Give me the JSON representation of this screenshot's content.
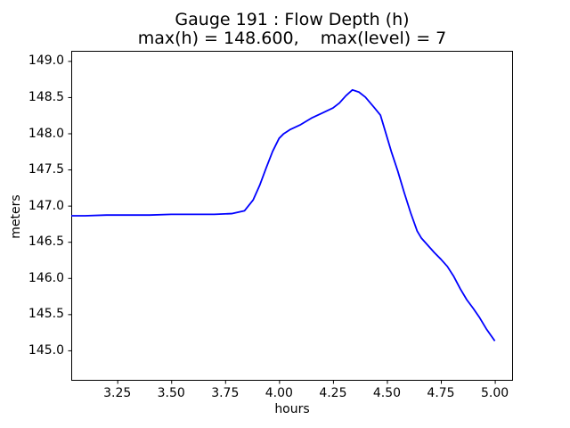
{
  "figure": {
    "background": "#ffffff",
    "text_color": "#000000"
  },
  "chart_data": {
    "type": "line",
    "title": "Gauge 191 : Flow Depth (h)",
    "subtitle": "max(h) = 148.600,    max(level) = 7",
    "xlabel": "hours",
    "ylabel": "meters",
    "xlim": [
      3.0366,
      5.0843
    ],
    "ylim": [
      144.58,
      149.14
    ],
    "xticks": [
      3.25,
      3.5,
      3.75,
      4.0,
      4.25,
      4.5,
      4.75,
      5.0
    ],
    "xtick_labels": [
      "3.25",
      "3.50",
      "3.75",
      "4.00",
      "4.25",
      "4.50",
      "4.75",
      "5.00"
    ],
    "yticks": [
      145.0,
      145.5,
      146.0,
      146.5,
      147.0,
      147.5,
      148.0,
      148.5,
      149.0
    ],
    "ytick_labels": [
      "145.0",
      "145.5",
      "146.0",
      "146.5",
      "147.0",
      "147.5",
      "148.0",
      "148.5",
      "149.0"
    ],
    "grid": false,
    "legend": null,
    "line_color": "#0000ff",
    "axis_color": "#000000",
    "max_h": 148.6,
    "max_level": 7,
    "series": [
      {
        "name": "h",
        "x": [
          3.037,
          3.1,
          3.2,
          3.3,
          3.4,
          3.5,
          3.6,
          3.7,
          3.78,
          3.84,
          3.88,
          3.91,
          3.94,
          3.97,
          4.0,
          4.02,
          4.05,
          4.1,
          4.15,
          4.2,
          4.25,
          4.28,
          4.31,
          4.34,
          4.37,
          4.4,
          4.44,
          4.47,
          4.49,
          4.52,
          4.55,
          4.58,
          4.61,
          4.64,
          4.66,
          4.69,
          4.72,
          4.75,
          4.78,
          4.81,
          4.84,
          4.87,
          4.9,
          4.93,
          4.96,
          5.0
        ],
        "y": [
          146.86,
          146.86,
          146.87,
          146.87,
          146.87,
          146.88,
          146.88,
          146.88,
          146.89,
          146.93,
          147.08,
          147.28,
          147.52,
          147.75,
          147.93,
          147.99,
          148.05,
          148.12,
          148.21,
          148.28,
          148.35,
          148.42,
          148.52,
          148.6,
          148.57,
          148.5,
          148.36,
          148.25,
          148.05,
          147.75,
          147.48,
          147.18,
          146.9,
          146.65,
          146.55,
          146.45,
          146.35,
          146.26,
          146.16,
          146.02,
          145.85,
          145.7,
          145.58,
          145.45,
          145.3,
          145.13
        ]
      }
    ]
  }
}
